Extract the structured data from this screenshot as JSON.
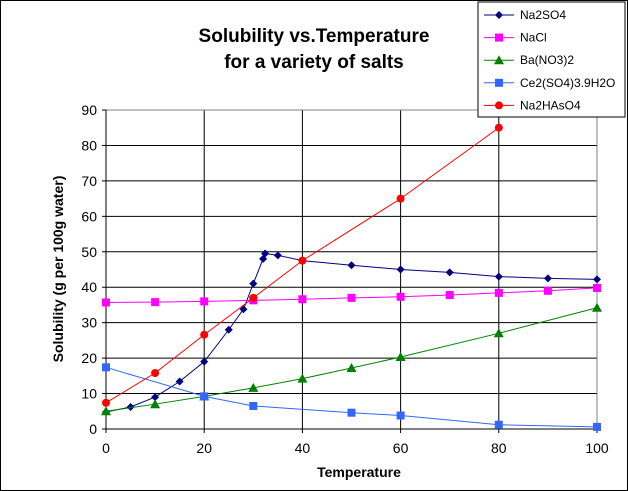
{
  "chart_data": {
    "type": "line",
    "title_lines": [
      "Solubility vs.Temperature",
      "for a variety of salts"
    ],
    "xlabel": "Temperature",
    "ylabel": "Solubility (g per 100g water)",
    "xlim": [
      0,
      100
    ],
    "ylim": [
      0,
      90
    ],
    "x_ticks": [
      0,
      20,
      40,
      60,
      80,
      100
    ],
    "y_ticks": [
      0,
      10,
      20,
      30,
      40,
      50,
      60,
      70,
      80,
      90
    ],
    "grid": true,
    "legend_position": "top-right",
    "series": [
      {
        "name": "Na2SO4",
        "color": "#000080",
        "marker": "diamond",
        "x": [
          0,
          5,
          10,
          15,
          20,
          25,
          28,
          30,
          32,
          32.4,
          35,
          40,
          50,
          60,
          70,
          80,
          90,
          100
        ],
        "y": [
          4.8,
          6.2,
          9,
          13.4,
          19,
          28,
          33.8,
          41,
          48,
          49.5,
          49,
          47.5,
          46.2,
          45,
          44.2,
          43,
          42.5,
          42.2
        ]
      },
      {
        "name": "NaCl",
        "color": "#ff00ff",
        "marker": "square",
        "x": [
          0,
          10,
          20,
          30,
          40,
          50,
          60,
          70,
          80,
          90,
          100
        ],
        "y": [
          35.7,
          35.8,
          36,
          36.3,
          36.6,
          37,
          37.3,
          37.8,
          38.4,
          39,
          39.8
        ]
      },
      {
        "name": "Ba(NO3)2",
        "color": "#008000",
        "marker": "triangle",
        "x": [
          0,
          10,
          20,
          30,
          40,
          50,
          60,
          80,
          100
        ],
        "y": [
          5,
          7,
          9.2,
          11.6,
          14.2,
          17.2,
          20.3,
          27,
          34.2
        ]
      },
      {
        "name": "Ce2(SO4)3.9H2O",
        "color": "#3366ff",
        "marker": "square",
        "x": [
          0,
          20,
          30,
          50,
          60,
          80,
          100
        ],
        "y": [
          17.4,
          9.2,
          6.5,
          4.6,
          3.8,
          1.2,
          0.6
        ]
      },
      {
        "name": "Na2HAsO4",
        "color": "#ff0000",
        "marker": "circle",
        "x": [
          0,
          10,
          20,
          30,
          40,
          60,
          80
        ],
        "y": [
          7.4,
          15.8,
          26.6,
          37,
          47.5,
          65,
          85
        ]
      }
    ]
  }
}
